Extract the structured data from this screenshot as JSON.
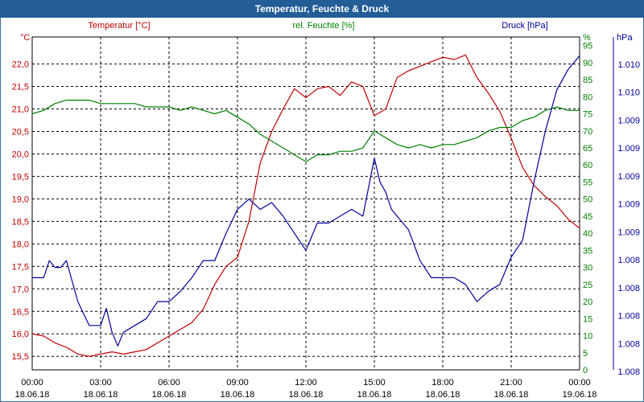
{
  "title": "Temperatur, Feuchte & Druck",
  "colors": {
    "title_bg": "#235d96",
    "temperature": "#c00000",
    "humidity": "#008000",
    "pressure": "#000099",
    "grid": "#000000"
  },
  "chart_data": {
    "type": "line",
    "title": "Temperatur, Feuchte & Druck",
    "grid": true,
    "x_range": [
      "18.06.18 00:00",
      "19.06.18 00:00"
    ],
    "x_ticks": [
      {
        "time": "00:00",
        "date": "18.06.18"
      },
      {
        "time": "03:00",
        "date": "18.06.18"
      },
      {
        "time": "06:00",
        "date": "18.06.18"
      },
      {
        "time": "09:00",
        "date": "18.06.18"
      },
      {
        "time": "12:00",
        "date": "18.06.18"
      },
      {
        "time": "15:00",
        "date": "18.06.18"
      },
      {
        "time": "18:00",
        "date": "18.06.18"
      },
      {
        "time": "21:00",
        "date": "18.06.18"
      },
      {
        "time": "00:00",
        "date": "19.06.18"
      }
    ],
    "axes": {
      "temperature": {
        "unit": "°C",
        "ylim": [
          15.2,
          22.6
        ],
        "ticks": [
          "15,5",
          "16,0",
          "16,5",
          "17,0",
          "17,5",
          "18,0",
          "18,5",
          "19,0",
          "19,5",
          "20,0",
          "20,5",
          "21,0",
          "21,5",
          "22,0"
        ]
      },
      "humidity": {
        "unit": "%",
        "ylim": [
          0,
          97.5
        ],
        "ticks": [
          "0",
          "5",
          "10",
          "15",
          "20",
          "25",
          "30",
          "35",
          "40",
          "45",
          "50",
          "55",
          "60",
          "65",
          "70",
          "75",
          "80",
          "85",
          "90",
          "95"
        ]
      },
      "pressure": {
        "unit": "hPa",
        "ticks": [
          "1.008",
          "1.008",
          "1.008",
          "1.008",
          "1.008",
          "1.009",
          "1.009",
          "1.009",
          "1.009",
          "1.009",
          "1.010",
          "1.010"
        ]
      }
    },
    "series": [
      {
        "name": "Temperatur [°C]",
        "axis": "temperature",
        "x_hours": [
          0,
          0.5,
          1,
          1.5,
          2,
          2.5,
          3,
          3.5,
          4,
          4.5,
          5,
          5.5,
          6,
          6.5,
          7,
          7.5,
          8,
          8.5,
          9,
          9.5,
          10,
          10.5,
          11,
          11.5,
          12,
          12.5,
          13,
          13.5,
          14,
          14.5,
          15,
          15.5,
          16,
          16.5,
          17,
          17.5,
          18,
          18.5,
          19,
          19.5,
          20,
          20.5,
          21,
          21.5,
          22,
          22.5,
          23,
          23.5,
          24
        ],
        "values": [
          16.0,
          15.95,
          15.8,
          15.7,
          15.55,
          15.5,
          15.55,
          15.6,
          15.55,
          15.6,
          15.65,
          15.8,
          15.95,
          16.1,
          16.25,
          16.55,
          17.1,
          17.5,
          17.7,
          18.5,
          19.8,
          20.5,
          21.0,
          21.45,
          21.25,
          21.45,
          21.5,
          21.3,
          21.6,
          21.5,
          20.85,
          21.0,
          21.7,
          21.85,
          21.95,
          22.05,
          22.15,
          22.1,
          22.2,
          21.7,
          21.35,
          20.95,
          20.35,
          19.7,
          19.3,
          19.05,
          18.85,
          18.55,
          18.35
        ]
      },
      {
        "name": "rel. Feuchte [%]",
        "axis": "humidity",
        "x_hours": [
          0,
          0.5,
          1,
          1.5,
          2,
          2.5,
          3,
          3.5,
          4,
          4.5,
          5,
          5.5,
          6,
          6.5,
          7,
          7.5,
          8,
          8.5,
          9,
          9.5,
          10,
          10.5,
          11,
          11.5,
          12,
          12.5,
          13,
          13.5,
          14,
          14.5,
          15,
          15.5,
          16,
          16.5,
          17,
          17.5,
          18,
          18.5,
          19,
          19.5,
          20,
          20.5,
          21,
          21.5,
          22,
          22.5,
          23,
          23.5,
          24
        ],
        "values": [
          75,
          76,
          78,
          79,
          79,
          79,
          78,
          78,
          78,
          78,
          77,
          77,
          77,
          76,
          77,
          76,
          75,
          76,
          74,
          72,
          69,
          67,
          65,
          63,
          61,
          63,
          63,
          64,
          64,
          65,
          70,
          68,
          66,
          65,
          66,
          65,
          66,
          66,
          67,
          68,
          70,
          71,
          71,
          73,
          74,
          76,
          77,
          76,
          76
        ]
      },
      {
        "name": "Druck [hPa]",
        "axis": "pressure",
        "x_hours": [
          0,
          0.5,
          0.75,
          1,
          1.25,
          1.5,
          1.75,
          2,
          2.5,
          3,
          3.25,
          3.5,
          3.75,
          4,
          4.5,
          5,
          5.5,
          6,
          6.5,
          7,
          7.5,
          8,
          8.5,
          9,
          9.5,
          10,
          10.5,
          11,
          11.5,
          12,
          12.5,
          13,
          13.5,
          14,
          14.5,
          15,
          15.25,
          15.5,
          15.75,
          16,
          16.5,
          17,
          17.5,
          18,
          18.5,
          19,
          19.5,
          20,
          20.5,
          21,
          21.5,
          22,
          22.5,
          23,
          23.5,
          24
        ],
        "values": [
          27,
          27,
          32,
          30,
          30,
          32,
          26,
          20,
          13,
          13,
          18,
          11,
          7,
          11,
          13,
          15,
          20,
          20,
          23,
          27,
          32,
          32,
          40,
          47,
          50,
          47,
          49,
          45,
          40,
          35,
          43,
          43,
          45,
          47,
          45,
          62,
          55,
          52,
          47,
          45,
          41,
          32,
          27,
          27,
          27,
          25,
          20,
          23,
          25,
          33,
          38,
          55,
          70,
          82,
          88,
          92
        ]
      }
    ]
  }
}
